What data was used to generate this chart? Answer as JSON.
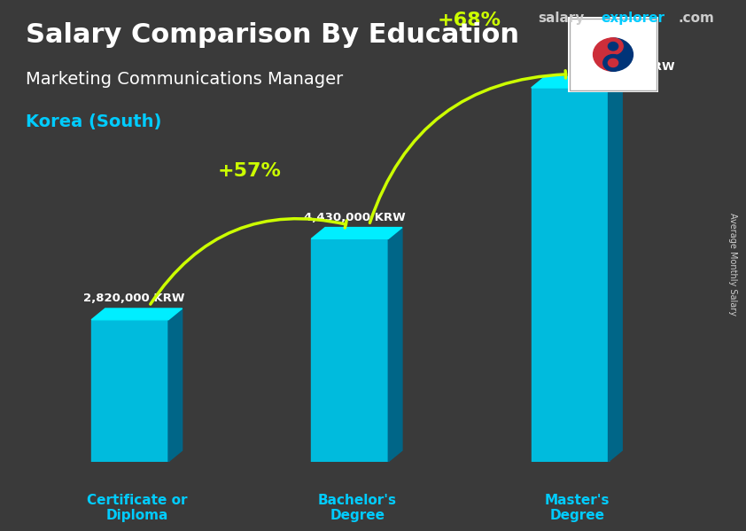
{
  "title_line1": "Salary Comparison By Education",
  "subtitle": "Marketing Communications Manager",
  "location": "Korea (South)",
  "watermark": "salaryexplorer.com",
  "side_label": "Average Monthly Salary",
  "categories": [
    "Certificate or\nDiploma",
    "Bachelor's\nDegree",
    "Master's\nDegree"
  ],
  "values": [
    2820000,
    4430000,
    7430000
  ],
  "value_labels": [
    "2,820,000 KRW",
    "4,430,000 KRW",
    "7,430,000 KRW"
  ],
  "pct_labels": [
    "+57%",
    "+68%"
  ],
  "bar_color_top": "#00d4ff",
  "bar_color_mid": "#00aadd",
  "bar_color_bottom": "#0088bb",
  "bar_color_side": "#006688",
  "bg_color": "#3a3a3a",
  "title_color": "#ffffff",
  "subtitle_color": "#ffffff",
  "location_color": "#00ccff",
  "watermark_salary_color": "#cccccc",
  "watermark_explorer_color": "#00ccff",
  "label_color": "#ffffff",
  "pct_color": "#ccff00",
  "arrow_color": "#ccff00",
  "xtick_color": "#00ccff",
  "ylim": [
    0,
    9000000
  ],
  "bar_width": 0.35
}
